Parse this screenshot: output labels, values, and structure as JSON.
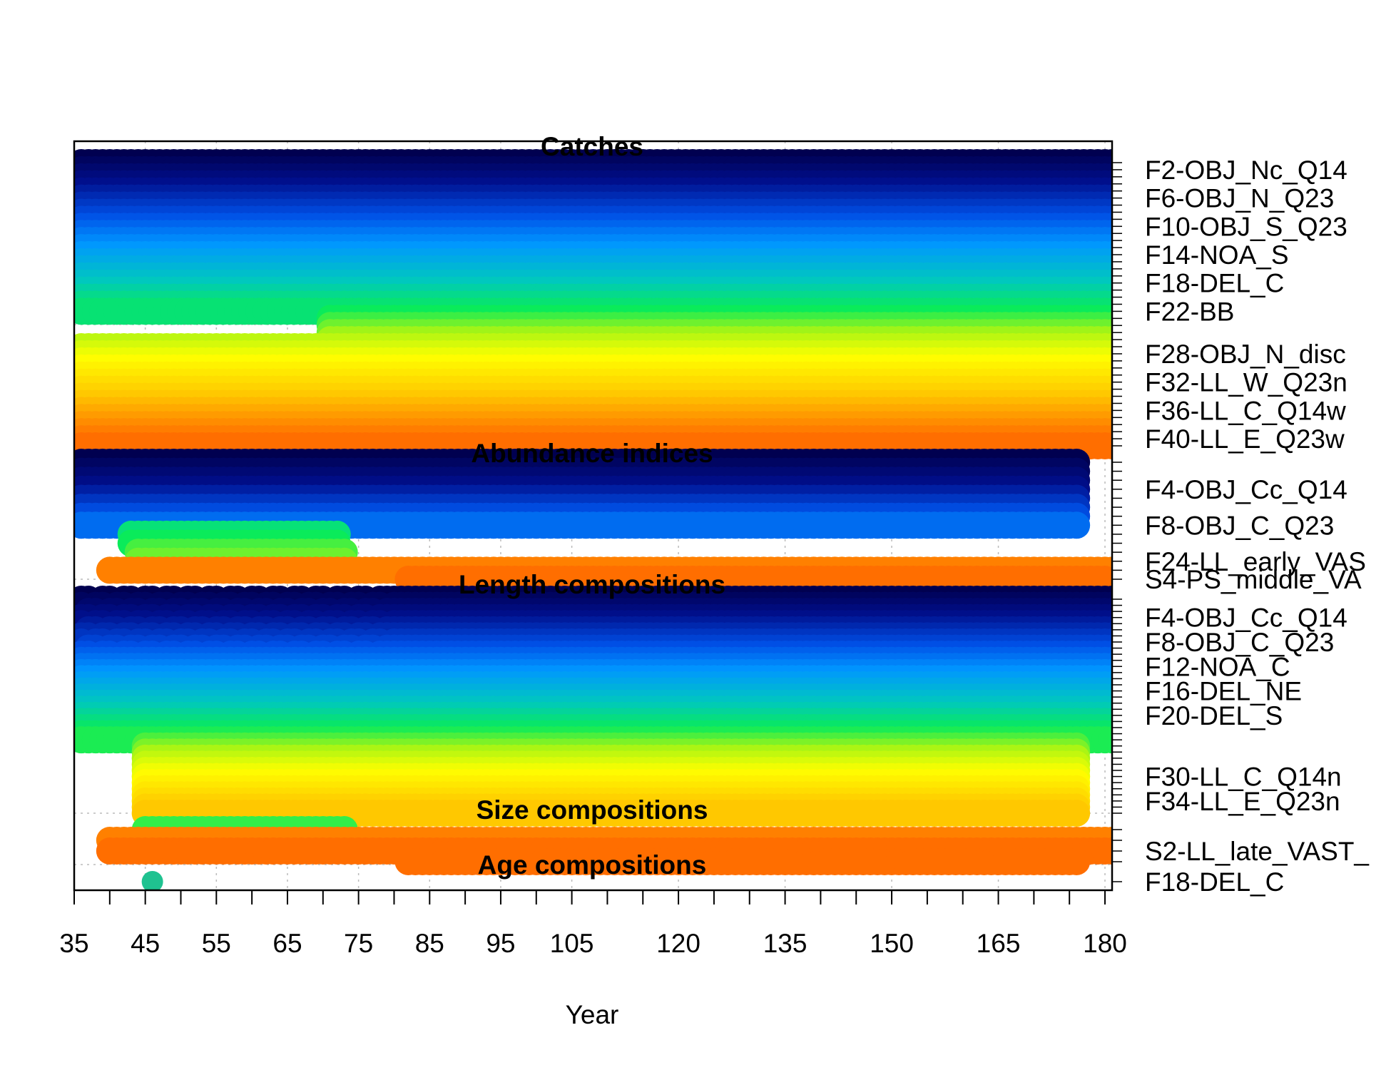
{
  "chart_data": {
    "type": "scatter",
    "xlabel": "Year",
    "ylabel": "",
    "xlim": [
      35,
      181
    ],
    "grid": true,
    "x_ticks_labeled": [
      35,
      45,
      55,
      65,
      75,
      85,
      95,
      105,
      120,
      135,
      150,
      165,
      180
    ],
    "marker": "filled-circle",
    "panels": [
      {
        "title": "Catches",
        "fleets": 41,
        "labels": [
          {
            "fleet": 2,
            "text": "F2-OBJ_Nc_Q14"
          },
          {
            "fleet": 6,
            "text": "F6-OBJ_N_Q23"
          },
          {
            "fleet": 10,
            "text": "F10-OBJ_S_Q23"
          },
          {
            "fleet": 14,
            "text": "F14-NOA_S"
          },
          {
            "fleet": 18,
            "text": "F18-DEL_C"
          },
          {
            "fleet": 22,
            "text": "F22-BB"
          },
          {
            "fleet": 28,
            "text": "F28-OBJ_N_disc"
          },
          {
            "fleet": 32,
            "text": "F32-LL_W_Q23n"
          },
          {
            "fleet": 36,
            "text": "F36-LL_C_Q14w"
          },
          {
            "fleet": 40,
            "text": "F40-LL_E_Q23w"
          }
        ],
        "coverage": [
          {
            "fleets": [
              1,
              22
            ],
            "years": [
              36,
              181
            ]
          },
          {
            "fleets": [
              23,
              26
            ],
            "years": [
              71,
              181
            ]
          },
          {
            "fleets": [
              27,
              41
            ],
            "years": [
              36,
              181
            ]
          }
        ]
      },
      {
        "title": "Abundance indices",
        "fleets": 14,
        "labels": [
          {
            "row": 4,
            "text": "F4-OBJ_Cc_Q14"
          },
          {
            "row": 8,
            "text": "F8-OBJ_C_Q23"
          },
          {
            "row": 12,
            "text": "F24-LL_early_VAS"
          },
          {
            "row": 14,
            "text": "S4-PS_middle_VA"
          }
        ],
        "coverage": [
          {
            "rows": [
              1,
              8
            ],
            "years": [
              36,
              176
            ]
          },
          {
            "rows": [
              9,
              10
            ],
            "years": [
              43,
              72
            ]
          },
          {
            "rows": [
              11,
              12
            ],
            "years": [
              44,
              73
            ]
          },
          {
            "rows": [
              13,
              13
            ],
            "years": [
              40,
              181
            ]
          },
          {
            "rows": [
              14,
              14
            ],
            "years": [
              82,
              180
            ]
          }
        ]
      },
      {
        "title": "Length compositions",
        "fleets": 36,
        "labels": [
          {
            "fleet": 4,
            "text": "F4-OBJ_Cc_Q14"
          },
          {
            "fleet": 8,
            "text": "F8-OBJ_C_Q23"
          },
          {
            "fleet": 12,
            "text": "F12-NOA_C"
          },
          {
            "fleet": 16,
            "text": "F16-DEL_NE"
          },
          {
            "fleet": 20,
            "text": "F20-DEL_S"
          },
          {
            "fleet": 30,
            "text": "F30-LL_C_Q14n"
          },
          {
            "fleet": 34,
            "text": "F34-LL_E_Q23n"
          }
        ],
        "coverage": [
          {
            "fleets": [
              1,
              10
            ],
            "years": [
              36,
              181
            ],
            "sparse_before": 80
          },
          {
            "fleets": [
              11,
              24
            ],
            "years": [
              36,
              181
            ]
          },
          {
            "fleets": [
              25,
              36
            ],
            "years": [
              45,
              176
            ]
          }
        ]
      },
      {
        "title": "Size compositions",
        "fleets": 4,
        "labels": [
          {
            "row": 3,
            "text": "S2-LL_late_VAST_"
          }
        ],
        "coverage": [
          {
            "rows": [
              1,
              1
            ],
            "years": [
              45,
              73
            ]
          },
          {
            "rows": [
              2,
              3
            ],
            "years": [
              40,
              181
            ]
          },
          {
            "rows": [
              4,
              4
            ],
            "years": [
              82,
              176
            ]
          }
        ]
      },
      {
        "title": "Age compositions",
        "fleets": 1,
        "labels": [
          {
            "row": 1,
            "text": "F18-DEL_C"
          }
        ],
        "points": [
          {
            "year": 46,
            "color": "#1fc290"
          }
        ]
      }
    ]
  }
}
